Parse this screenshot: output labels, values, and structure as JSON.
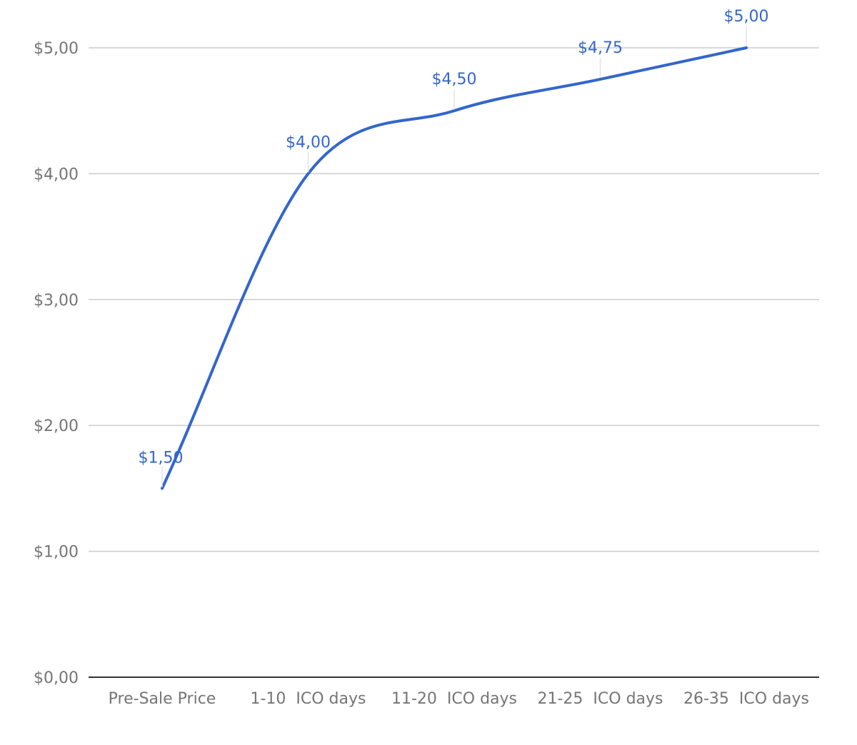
{
  "chart_data": {
    "type": "line",
    "categories": [
      "Pre-Sale Price",
      "1-10  ICO days",
      "11-20  ICO days",
      "21-25  ICO days",
      "26-35  ICO days"
    ],
    "series": [
      {
        "values": [
          1.5,
          4.0,
          4.5,
          4.75,
          5.0
        ]
      }
    ],
    "data_labels": [
      "$1,50",
      "$4,00",
      "$4,50",
      "$4,75",
      "$5,00"
    ],
    "y_ticks": [
      {
        "value": 0,
        "label": "$0,00"
      },
      {
        "value": 1,
        "label": "$1,00"
      },
      {
        "value": 2,
        "label": "$2,00"
      },
      {
        "value": 3,
        "label": "$3,00"
      },
      {
        "value": 4,
        "label": "$4,00"
      },
      {
        "value": 5,
        "label": "$5,00"
      }
    ],
    "ylim": [
      0,
      5
    ],
    "title": "",
    "xlabel": "",
    "ylabel": "",
    "grid": true,
    "smooth": true,
    "legend": "none",
    "line_color": "#3366cc",
    "gridline_color": "#cccccc",
    "axis_color": "#333333",
    "tick_label_color": "#757575"
  }
}
